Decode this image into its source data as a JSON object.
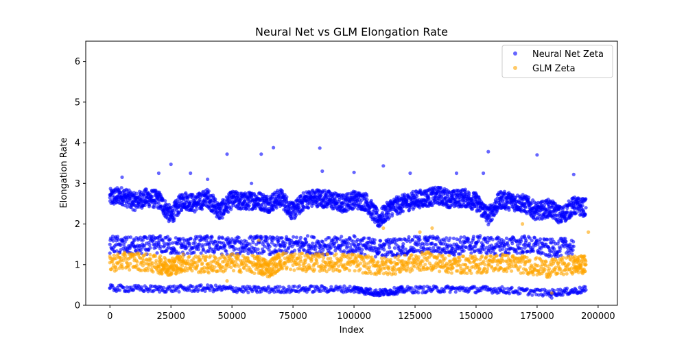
{
  "chart_data": {
    "type": "scatter",
    "title": "Neural Net vs GLM Elongation Rate",
    "xlabel": "Index",
    "ylabel": "Elongation Rate",
    "xlim": [
      -9900,
      207900
    ],
    "ylim": [
      0,
      6.5
    ],
    "xticks": [
      0,
      25000,
      50000,
      75000,
      100000,
      125000,
      150000,
      175000,
      200000
    ],
    "xtick_labels": [
      "0",
      "25000",
      "50000",
      "75000",
      "100000",
      "125000",
      "150000",
      "175000",
      "200000"
    ],
    "yticks": [
      0,
      1,
      2,
      3,
      4,
      5,
      6
    ],
    "ytick_labels": [
      "0",
      "1",
      "2",
      "3",
      "4",
      "5",
      "6"
    ],
    "grid": false,
    "legend_position": "top-right",
    "series": [
      {
        "name": "Neural Net Zeta",
        "color": "#0000ff",
        "alpha": 0.6,
        "band_points": [
          {
            "x": 0,
            "y": 2.65
          },
          {
            "x": 5000,
            "y": 2.7
          },
          {
            "x": 10000,
            "y": 2.55
          },
          {
            "x": 15000,
            "y": 2.65
          },
          {
            "x": 20000,
            "y": 2.6
          },
          {
            "x": 25000,
            "y": 2.2
          },
          {
            "x": 30000,
            "y": 2.6
          },
          {
            "x": 35000,
            "y": 2.5
          },
          {
            "x": 40000,
            "y": 2.65
          },
          {
            "x": 45000,
            "y": 2.3
          },
          {
            "x": 50000,
            "y": 2.6
          },
          {
            "x": 55000,
            "y": 2.55
          },
          {
            "x": 60000,
            "y": 2.6
          },
          {
            "x": 65000,
            "y": 2.5
          },
          {
            "x": 70000,
            "y": 2.65
          },
          {
            "x": 75000,
            "y": 2.3
          },
          {
            "x": 80000,
            "y": 2.6
          },
          {
            "x": 85000,
            "y": 2.65
          },
          {
            "x": 90000,
            "y": 2.6
          },
          {
            "x": 95000,
            "y": 2.5
          },
          {
            "x": 100000,
            "y": 2.6
          },
          {
            "x": 105000,
            "y": 2.55
          },
          {
            "x": 110000,
            "y": 2.1
          },
          {
            "x": 115000,
            "y": 2.4
          },
          {
            "x": 120000,
            "y": 2.5
          },
          {
            "x": 125000,
            "y": 2.6
          },
          {
            "x": 130000,
            "y": 2.65
          },
          {
            "x": 135000,
            "y": 2.7
          },
          {
            "x": 140000,
            "y": 2.6
          },
          {
            "x": 145000,
            "y": 2.65
          },
          {
            "x": 150000,
            "y": 2.55
          },
          {
            "x": 155000,
            "y": 2.2
          },
          {
            "x": 160000,
            "y": 2.6
          },
          {
            "x": 165000,
            "y": 2.55
          },
          {
            "x": 170000,
            "y": 2.5
          },
          {
            "x": 175000,
            "y": 2.3
          },
          {
            "x": 180000,
            "y": 2.4
          },
          {
            "x": 185000,
            "y": 2.2
          },
          {
            "x": 190000,
            "y": 2.45
          },
          {
            "x": 195000,
            "y": 2.4
          },
          {
            "x": 0,
            "y": 1.5
          },
          {
            "x": 10000,
            "y": 1.45
          },
          {
            "x": 20000,
            "y": 1.5
          },
          {
            "x": 30000,
            "y": 1.45
          },
          {
            "x": 40000,
            "y": 1.5
          },
          {
            "x": 50000,
            "y": 1.45
          },
          {
            "x": 60000,
            "y": 1.5
          },
          {
            "x": 70000,
            "y": 1.45
          },
          {
            "x": 80000,
            "y": 1.5
          },
          {
            "x": 90000,
            "y": 1.45
          },
          {
            "x": 100000,
            "y": 1.5
          },
          {
            "x": 110000,
            "y": 1.4
          },
          {
            "x": 120000,
            "y": 1.45
          },
          {
            "x": 130000,
            "y": 1.5
          },
          {
            "x": 140000,
            "y": 1.45
          },
          {
            "x": 150000,
            "y": 1.5
          },
          {
            "x": 160000,
            "y": 1.45
          },
          {
            "x": 170000,
            "y": 1.5
          },
          {
            "x": 180000,
            "y": 1.4
          },
          {
            "x": 190000,
            "y": 1.45
          },
          {
            "x": 0,
            "y": 0.42
          },
          {
            "x": 20000,
            "y": 0.4
          },
          {
            "x": 40000,
            "y": 0.42
          },
          {
            "x": 60000,
            "y": 0.38
          },
          {
            "x": 80000,
            "y": 0.4
          },
          {
            "x": 100000,
            "y": 0.4
          },
          {
            "x": 110000,
            "y": 0.3
          },
          {
            "x": 120000,
            "y": 0.38
          },
          {
            "x": 140000,
            "y": 0.4
          },
          {
            "x": 160000,
            "y": 0.38
          },
          {
            "x": 180000,
            "y": 0.3
          },
          {
            "x": 195000,
            "y": 0.38
          }
        ],
        "outliers": [
          {
            "x": 25000,
            "y": 3.47
          },
          {
            "x": 48000,
            "y": 3.72
          },
          {
            "x": 62000,
            "y": 3.72
          },
          {
            "x": 67000,
            "y": 3.88
          },
          {
            "x": 86000,
            "y": 3.87
          },
          {
            "x": 112000,
            "y": 3.43
          },
          {
            "x": 155000,
            "y": 3.78
          },
          {
            "x": 175000,
            "y": 3.7
          },
          {
            "x": 20000,
            "y": 3.25
          },
          {
            "x": 33000,
            "y": 3.25
          },
          {
            "x": 100000,
            "y": 3.27
          },
          {
            "x": 123000,
            "y": 3.25
          },
          {
            "x": 142000,
            "y": 3.25
          },
          {
            "x": 153000,
            "y": 3.25
          },
          {
            "x": 190000,
            "y": 3.22
          },
          {
            "x": 5000,
            "y": 3.15
          },
          {
            "x": 40000,
            "y": 3.1
          },
          {
            "x": 58000,
            "y": 3.0
          },
          {
            "x": 87000,
            "y": 3.3
          },
          {
            "x": 181000,
            "y": 0.18
          }
        ]
      },
      {
        "name": "GLM Zeta",
        "color": "#ffa500",
        "alpha": 0.6,
        "band_points": [
          {
            "x": 0,
            "y": 1.05
          },
          {
            "x": 10000,
            "y": 1.1
          },
          {
            "x": 20000,
            "y": 1.0
          },
          {
            "x": 25000,
            "y": 0.95
          },
          {
            "x": 30000,
            "y": 1.05
          },
          {
            "x": 40000,
            "y": 1.0
          },
          {
            "x": 50000,
            "y": 1.05
          },
          {
            "x": 60000,
            "y": 1.0
          },
          {
            "x": 65000,
            "y": 0.9
          },
          {
            "x": 70000,
            "y": 1.1
          },
          {
            "x": 80000,
            "y": 1.05
          },
          {
            "x": 90000,
            "y": 1.05
          },
          {
            "x": 100000,
            "y": 1.05
          },
          {
            "x": 110000,
            "y": 0.95
          },
          {
            "x": 120000,
            "y": 1.0
          },
          {
            "x": 130000,
            "y": 1.1
          },
          {
            "x": 140000,
            "y": 1.0
          },
          {
            "x": 150000,
            "y": 1.0
          },
          {
            "x": 160000,
            "y": 1.05
          },
          {
            "x": 170000,
            "y": 1.0
          },
          {
            "x": 180000,
            "y": 0.9
          },
          {
            "x": 190000,
            "y": 1.0
          },
          {
            "x": 195000,
            "y": 1.0
          }
        ],
        "outliers": [
          {
            "x": 61000,
            "y": 1.6
          },
          {
            "x": 112000,
            "y": 1.9
          },
          {
            "x": 127000,
            "y": 1.8
          },
          {
            "x": 132000,
            "y": 1.9
          },
          {
            "x": 169000,
            "y": 2.0
          },
          {
            "x": 181000,
            "y": 0.3
          },
          {
            "x": 196000,
            "y": 1.8
          },
          {
            "x": 48000,
            "y": 0.6
          }
        ]
      }
    ]
  }
}
